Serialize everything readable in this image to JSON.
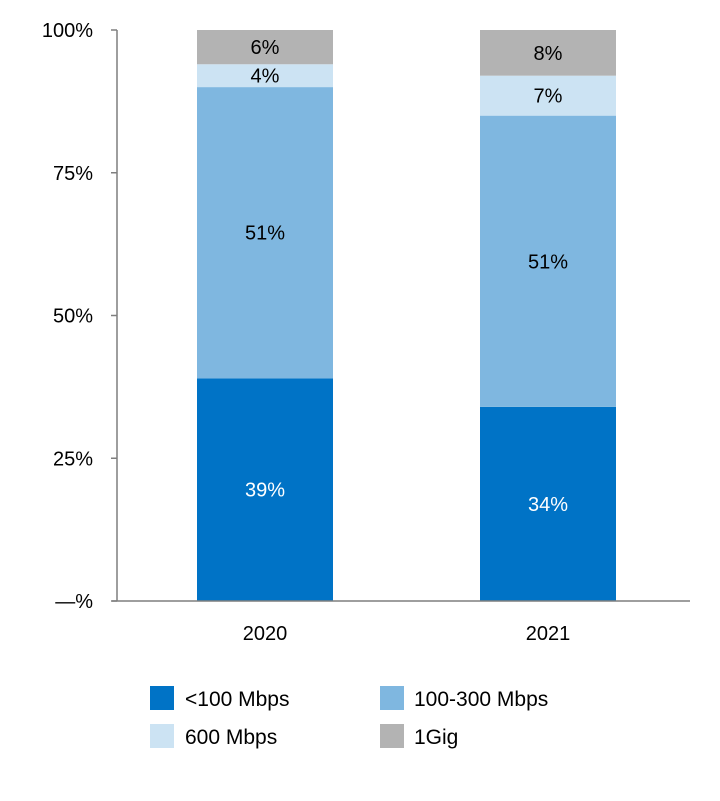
{
  "chart_data": {
    "type": "bar",
    "stacked": true,
    "title": "",
    "xlabel": "",
    "ylabel": "",
    "ylim": [
      0,
      100
    ],
    "yticks": [
      {
        "value": 0,
        "label": "—%"
      },
      {
        "value": 25,
        "label": "25%"
      },
      {
        "value": 50,
        "label": "50%"
      },
      {
        "value": 75,
        "label": "75%"
      },
      {
        "value": 100,
        "label": "100%"
      }
    ],
    "categories": [
      "2020",
      "2021"
    ],
    "series": [
      {
        "name": "<100 Mbps",
        "color": "#0073C6",
        "label_color": "#FFFFFF",
        "values": [
          39,
          34
        ],
        "labels": [
          "39%",
          "34%"
        ]
      },
      {
        "name": "100-300 Mbps",
        "color": "#7FB7E0",
        "label_color": "#000000",
        "values": [
          51,
          51
        ],
        "labels": [
          "51%",
          "51%"
        ]
      },
      {
        "name": "600 Mbps",
        "color": "#CCE3F3",
        "label_color": "#000000",
        "values": [
          4,
          7
        ],
        "labels": [
          "4%",
          "7%"
        ]
      },
      {
        "name": "1Gig",
        "color": "#B3B3B3",
        "label_color": "#000000",
        "values": [
          6,
          8
        ],
        "labels": [
          "6%",
          "8%"
        ]
      }
    ],
    "legend": {
      "placement": "bottom",
      "columns": 2
    },
    "grid": false
  }
}
